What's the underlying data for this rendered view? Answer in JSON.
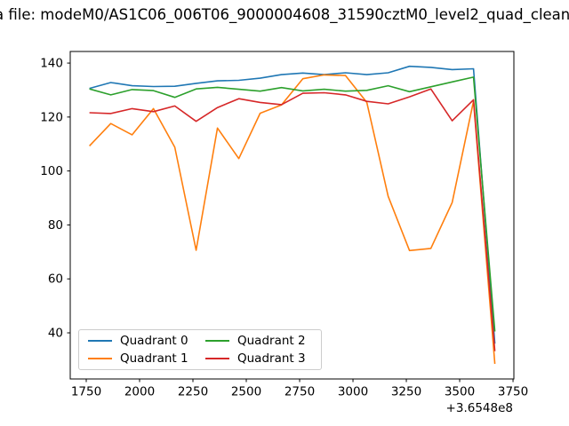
{
  "chart_data": {
    "type": "line",
    "title": "a file: modeM0/AS1C06_006T06_9000004608_31590cztM0_level2_quad_clean",
    "x_offset_label": "+3.6548e8",
    "xlabel": "",
    "ylabel": "",
    "xlim": [
      1675,
      3754
    ],
    "ylim": [
      22.9,
      144.3
    ],
    "x_ticks": [
      1750,
      2000,
      2250,
      2500,
      2750,
      3000,
      3250,
      3500,
      3750
    ],
    "y_ticks": [
      40,
      60,
      80,
      100,
      120,
      140
    ],
    "grid": false,
    "legend_position": "lower-left",
    "legend_columns": 2,
    "x": [
      1765,
      1865,
      1965,
      2065,
      2165,
      2265,
      2365,
      2465,
      2565,
      2665,
      2765,
      2865,
      2965,
      3065,
      3165,
      3265,
      3365,
      3465,
      3565,
      3665
    ],
    "series": [
      {
        "name": "Quadrant 0",
        "color": "#1f77b4",
        "values": [
          130.6,
          132.8,
          131.6,
          131.3,
          131.4,
          132.5,
          133.4,
          133.6,
          134.4,
          135.7,
          136.3,
          135.7,
          136.4,
          135.7,
          136.4,
          138.8,
          138.4,
          137.6,
          137.9,
          36.0
        ]
      },
      {
        "name": "Quadrant 1",
        "color": "#ff7f0e",
        "values": [
          109.3,
          117.6,
          113.4,
          123.1,
          108.8,
          70.6,
          115.9,
          104.6,
          121.4,
          124.5,
          134.2,
          135.6,
          135.4,
          125.4,
          90.6,
          70.5,
          71.3,
          88.3,
          125.9,
          28.5
        ]
      },
      {
        "name": "Quadrant 2",
        "color": "#2ca02c",
        "values": [
          130.4,
          128.2,
          130.2,
          129.8,
          127.3,
          130.4,
          131.0,
          130.3,
          129.6,
          130.9,
          129.7,
          130.3,
          129.6,
          129.9,
          131.6,
          129.4,
          131.2,
          133.0,
          134.8,
          40.5
        ]
      },
      {
        "name": "Quadrant 3",
        "color": "#d62728",
        "values": [
          121.6,
          121.3,
          123.1,
          122.0,
          124.1,
          118.4,
          123.5,
          126.8,
          125.4,
          124.6,
          128.8,
          129.0,
          128.2,
          125.8,
          124.9,
          127.5,
          130.4,
          118.6,
          126.4,
          33.2
        ]
      }
    ]
  }
}
